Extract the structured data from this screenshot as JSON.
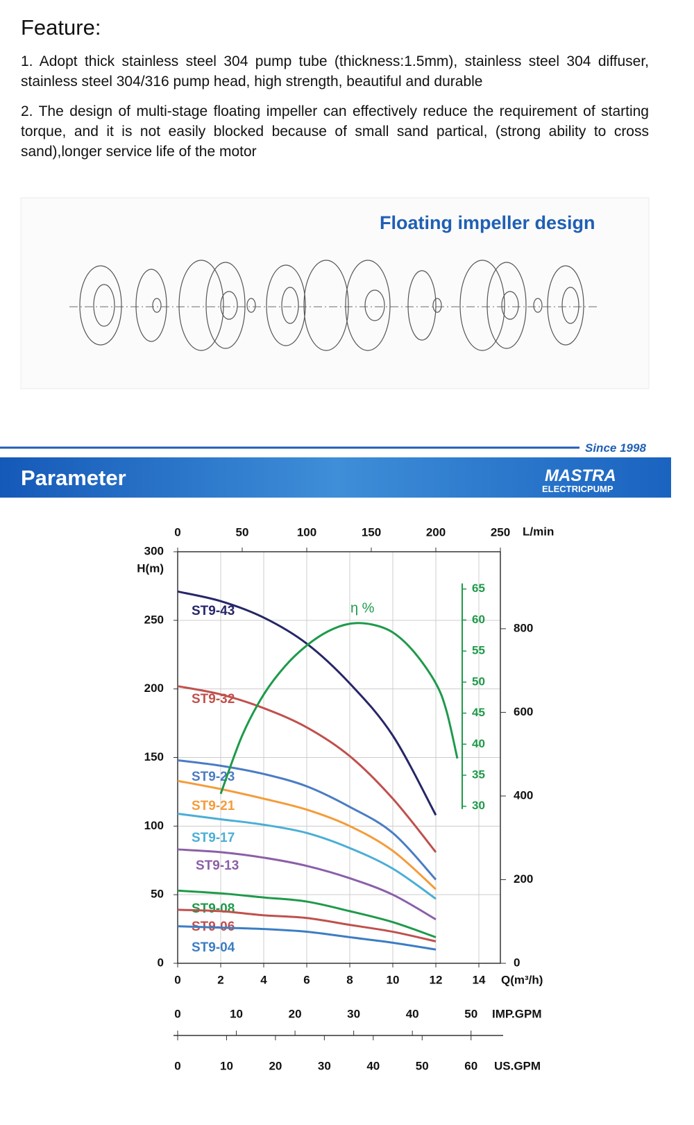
{
  "feature": {
    "title": "Feature:",
    "items": [
      "1. Adopt thick stainless steel 304 pump tube (thickness:1.5mm),  stainless steel 304 diffuser,  stainless steel 304/316 pump head, high strength, beautiful and durable",
      "2. The design of multi-stage floating impeller can effectively reduce the requirement of starting torque,  and it is not easily blocked because of small sand partical, (strong ability to cross sand),longer service life of the motor"
    ]
  },
  "image": {
    "caption": "Floating impeller design"
  },
  "banner": {
    "since": "Since 1998",
    "title": "Parameter",
    "logo": "MASTRA",
    "logo_sub": "ELECTRICPUMP"
  },
  "chart_data": {
    "type": "line",
    "x": [
      0,
      2,
      4,
      6,
      8,
      10,
      12
    ],
    "xlim": [
      0,
      15
    ],
    "xticks": [
      0,
      2,
      4,
      6,
      8,
      10,
      12,
      14
    ],
    "xlabel": "Q(m³/h)",
    "x2lim": [
      0,
      250
    ],
    "x2ticks": [
      0,
      50,
      100,
      150,
      200,
      250
    ],
    "x2label": "L/min",
    "x3lim": [
      0,
      55
    ],
    "x3ticks": [
      0,
      10,
      20,
      30,
      40,
      50
    ],
    "x3label": "IMP.GPM",
    "x4lim": [
      0,
      66
    ],
    "x4ticks": [
      0,
      10,
      20,
      30,
      40,
      50,
      60
    ],
    "x4label": "US.GPM",
    "ylim": [
      0,
      300
    ],
    "yticks": [
      0,
      50,
      100,
      150,
      200,
      250,
      300
    ],
    "ylabel": "H(m)",
    "y2lim": [
      0,
      984
    ],
    "y2ticks": [
      0,
      200,
      400,
      600,
      800
    ],
    "y3lim": [
      4.7,
      71.0
    ],
    "y3ticks": [
      30,
      35,
      40,
      45,
      50,
      55,
      60,
      65
    ],
    "y3label": "η %",
    "grid": true,
    "series": [
      {
        "name": "ST9-43",
        "color": "#262668",
        "values": [
          271,
          264,
          252,
          233,
          204,
          166,
          108
        ]
      },
      {
        "name": "ST9-32",
        "color": "#c0504d",
        "values": [
          202,
          196,
          186,
          172,
          151,
          120,
          81
        ]
      },
      {
        "name": "ST9-23",
        "color": "#4a7cc4",
        "values": [
          148,
          144,
          138,
          129,
          114,
          95,
          61
        ]
      },
      {
        "name": "ST9-21",
        "color": "#f59b3a",
        "values": [
          133,
          127,
          120,
          112,
          100,
          82,
          54
        ]
      },
      {
        "name": "ST9-17",
        "color": "#4aaed6",
        "values": [
          109,
          105,
          101,
          95,
          84,
          69,
          47
        ]
      },
      {
        "name": "ST9-13",
        "color": "#8a5fa8",
        "values": [
          83,
          81,
          77,
          71,
          62,
          50,
          32
        ]
      },
      {
        "name": "ST9-08",
        "color": "#1e9a4a",
        "values": [
          53,
          51,
          48,
          45,
          38,
          30,
          19
        ]
      },
      {
        "name": "ST9-06",
        "color": "#c0504d",
        "values": [
          39,
          38,
          35,
          33,
          28,
          23,
          16
        ]
      },
      {
        "name": "ST9-04",
        "color": "#3b7dc4",
        "values": [
          27,
          26,
          25,
          23,
          19,
          15,
          10
        ]
      },
      {
        "color": "#1e9a4a",
        "axis": "y3",
        "x": [
          2,
          3,
          4,
          5,
          6,
          7,
          8,
          9,
          10,
          11,
          12,
          12.5,
          13
        ],
        "values": [
          32,
          41.4,
          48,
          52.6,
          55.9,
          58.2,
          59.4,
          59.3,
          58,
          54.8,
          49.8,
          45.3,
          37.7
        ]
      }
    ]
  }
}
